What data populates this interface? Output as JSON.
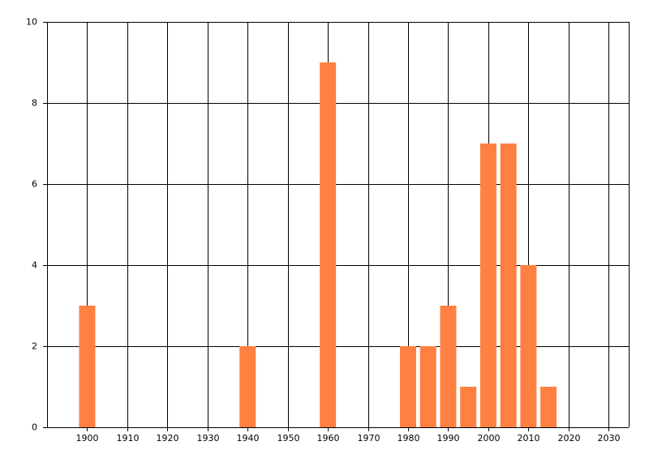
{
  "chart_data": {
    "type": "bar",
    "x": [
      1900,
      1940,
      1960,
      1980,
      1985,
      1990,
      1995,
      2000,
      2005,
      2010,
      2015
    ],
    "values": [
      3,
      2,
      9,
      2,
      2,
      3,
      1,
      7,
      7,
      4,
      1
    ],
    "color": "#ff8040",
    "xlim": [
      1890,
      2035
    ],
    "xticks": [
      1900,
      1910,
      1920,
      1930,
      1940,
      1950,
      1960,
      1970,
      1980,
      1990,
      2000,
      2010,
      2020,
      2030
    ],
    "ylim": [
      0,
      10
    ],
    "yticks": [
      0,
      2,
      4,
      6,
      8,
      10
    ],
    "grid": true
  }
}
